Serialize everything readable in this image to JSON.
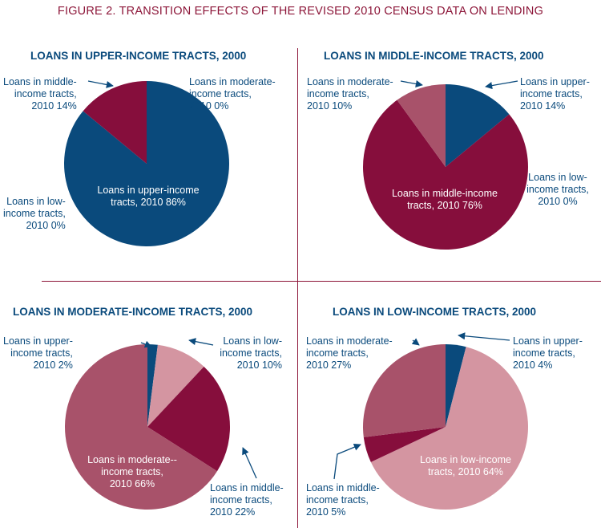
{
  "figure_title": "FIGURE 2. TRANSITION EFFECTS OF THE REVISED 2010 CENSUS DATA ON LENDING",
  "colors": {
    "upper": "#0a4a7c",
    "middle": "#860e3c",
    "moderate": "#a8526a",
    "low": "#d495a1",
    "title": "#8c1538",
    "arrow": "#0a4a7c"
  },
  "chart_data": [
    {
      "type": "pie",
      "title": "LOANS IN UPPER-INCOME TRACTS, 2000",
      "slices": [
        {
          "category": "upper-income",
          "value": 86,
          "label": [
            "Loans in upper-income",
            "tracts, 2010 86%"
          ]
        },
        {
          "category": "low-income",
          "value": 0,
          "label": [
            "Loans in low-",
            "income tracts,",
            "2010 0%"
          ]
        },
        {
          "category": "middle-income",
          "value": 14,
          "label": [
            "Loans in middle-",
            "income tracts,",
            "2010 14%"
          ]
        },
        {
          "category": "moderate-income",
          "value": 0,
          "label": [
            "Loans in moderate-",
            "income tracts,",
            "2010 0%"
          ]
        }
      ]
    },
    {
      "type": "pie",
      "title": "LOANS IN MIDDLE-INCOME TRACTS, 2000",
      "slices": [
        {
          "category": "upper-income",
          "value": 14,
          "label": [
            "Loans in upper-",
            "income tracts,",
            "2010 14%"
          ]
        },
        {
          "category": "low-income",
          "value": 0,
          "label": [
            "Loans in low-",
            "income tracts,",
            "2010 0%"
          ]
        },
        {
          "category": "middle-income",
          "value": 76,
          "label": [
            "Loans in middle-income",
            "tracts, 2010 76%"
          ]
        },
        {
          "category": "moderate-income",
          "value": 10,
          "label": [
            "Loans in moderate-",
            "income tracts,",
            "2010 10%"
          ]
        }
      ]
    },
    {
      "type": "pie",
      "title": "LOANS IN MODERATE-INCOME TRACTS, 2000",
      "slices": [
        {
          "category": "upper-income",
          "value": 2,
          "label": [
            "Loans in upper-",
            "income tracts,",
            "2010 2%"
          ]
        },
        {
          "category": "low-income",
          "value": 10,
          "label": [
            "Loans in low-",
            "income tracts,",
            "2010 10%"
          ]
        },
        {
          "category": "middle-income",
          "value": 22,
          "label": [
            "Loans in middle-",
            "income tracts,",
            "2010 22%"
          ]
        },
        {
          "category": "moderate-income",
          "value": 66,
          "label": [
            "Loans in moderate--",
            "income tracts,",
            "2010 66%"
          ]
        }
      ]
    },
    {
      "type": "pie",
      "title": "LOANS IN LOW-INCOME TRACTS, 2000",
      "slices": [
        {
          "category": "upper-income",
          "value": 4,
          "label": [
            "Loans in upper-",
            "income tracts,",
            "2010 4%"
          ]
        },
        {
          "category": "low-income",
          "value": 64,
          "label": [
            "Loans in low-income",
            "tracts, 2010 64%"
          ]
        },
        {
          "category": "middle-income",
          "value": 5,
          "label": [
            "Loans in middle-",
            "income tracts,",
            "2010 5%"
          ]
        },
        {
          "category": "moderate-income",
          "value": 27,
          "label": [
            "Loans in moderate-",
            "income tracts,",
            "2010 27%"
          ]
        }
      ]
    }
  ]
}
